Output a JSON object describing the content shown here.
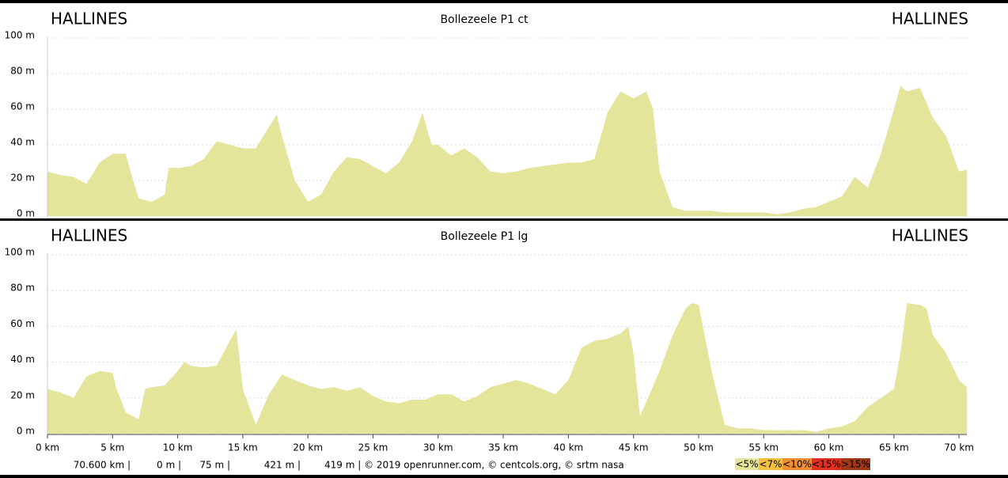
{
  "chart_data": [
    {
      "type": "area",
      "title": "Bollezeele P1 ct",
      "start_label": "HALLINES",
      "end_label": "HALLINES",
      "color": "#e4e49a",
      "x": [
        0,
        1,
        2,
        3,
        4,
        5,
        6,
        6.5,
        7,
        8,
        9,
        9.3,
        10,
        11,
        12,
        13,
        14,
        15,
        16,
        17,
        17.6,
        18,
        19,
        20,
        21,
        22,
        23,
        24,
        25,
        26,
        27,
        28,
        28.8,
        29.5,
        30,
        31,
        32,
        33,
        34,
        35,
        36,
        37,
        38,
        39,
        40,
        41,
        42,
        43,
        44,
        45,
        46,
        46.5,
        47,
        48,
        49,
        50,
        51,
        52,
        53,
        54,
        55,
        56,
        57,
        58,
        59,
        60,
        61,
        62,
        63,
        64,
        65,
        65.5,
        66,
        67,
        68,
        69,
        70,
        70.6
      ],
      "values": [
        25,
        23,
        22,
        18,
        30,
        35,
        35,
        22,
        10,
        8,
        12,
        27,
        27,
        28,
        32,
        42,
        40,
        38,
        38,
        50,
        57,
        45,
        20,
        8,
        12,
        25,
        33,
        32,
        28,
        24,
        30,
        42,
        58,
        40,
        40,
        34,
        38,
        33,
        25,
        24,
        25,
        27,
        28,
        29,
        30,
        30,
        32,
        58,
        70,
        66,
        70,
        60,
        25,
        5,
        3,
        3,
        3,
        2,
        2,
        2,
        2,
        1,
        2,
        4,
        5,
        8,
        11,
        22,
        16,
        35,
        60,
        73,
        70,
        72,
        55,
        45,
        25,
        26
      ],
      "xlim": [
        0,
        70.6
      ],
      "ylim": [
        0,
        100
      ],
      "yticks": [
        {
          "value": 0,
          "label": "0 m"
        },
        {
          "value": 20,
          "label": "20 m"
        },
        {
          "value": 40,
          "label": "40 m"
        },
        {
          "value": 60,
          "label": "60 m"
        },
        {
          "value": 80,
          "label": "80 m"
        },
        {
          "value": 100,
          "label": "100 m"
        }
      ],
      "grid": true
    },
    {
      "type": "area",
      "title": "Bollezeele P1 lg",
      "start_label": "HALLINES",
      "end_label": "HALLINES",
      "color": "#e4e49a",
      "x": [
        0,
        1,
        2,
        3,
        4,
        5,
        5.3,
        6,
        7,
        7.5,
        8,
        9,
        10,
        10.5,
        11,
        12,
        13,
        14,
        14.5,
        15,
        16,
        17,
        18,
        19,
        20,
        21,
        22,
        23,
        24,
        25,
        26,
        27,
        28,
        29,
        30,
        31,
        32,
        33,
        34,
        35,
        36,
        37,
        38,
        39,
        40,
        41,
        42,
        43,
        44,
        44.6,
        45,
        45.5,
        46,
        47,
        48,
        49,
        49.5,
        50,
        51,
        52,
        53,
        54,
        55,
        56,
        57,
        58,
        59,
        60,
        61,
        62,
        63,
        64,
        65,
        65.5,
        66,
        67,
        67.5,
        68,
        69,
        70,
        70.6
      ],
      "values": [
        25,
        23,
        20,
        32,
        35,
        34,
        25,
        12,
        8,
        25,
        26,
        27,
        35,
        40,
        38,
        37,
        38,
        52,
        58,
        25,
        5,
        22,
        33,
        30,
        27,
        25,
        26,
        24,
        26,
        21,
        18,
        17,
        19,
        19,
        22,
        22,
        18,
        21,
        26,
        28,
        30,
        28,
        25,
        22,
        30,
        48,
        52,
        53,
        56,
        60,
        45,
        10,
        18,
        35,
        55,
        70,
        73,
        72,
        35,
        5,
        3,
        3,
        2,
        2,
        2,
        2,
        1,
        3,
        4,
        7,
        15,
        20,
        25,
        45,
        73,
        72,
        70,
        55,
        45,
        30,
        26
      ],
      "xlim": [
        0,
        70.6
      ],
      "ylim": [
        0,
        100
      ],
      "yticks": [
        {
          "value": 0,
          "label": "0 m"
        },
        {
          "value": 20,
          "label": "20 m"
        },
        {
          "value": 40,
          "label": "40 m"
        },
        {
          "value": 60,
          "label": "60 m"
        },
        {
          "value": 80,
          "label": "80 m"
        },
        {
          "value": 100,
          "label": "100 m"
        }
      ],
      "xticks": [
        {
          "value": 0,
          "label": "0 km"
        },
        {
          "value": 5,
          "label": "5 km"
        },
        {
          "value": 10,
          "label": "10 km"
        },
        {
          "value": 15,
          "label": "15 km"
        },
        {
          "value": 20,
          "label": "20 km"
        },
        {
          "value": 25,
          "label": "25 km"
        },
        {
          "value": 30,
          "label": "30 km"
        },
        {
          "value": 35,
          "label": "35 km"
        },
        {
          "value": 40,
          "label": "40 km"
        },
        {
          "value": 45,
          "label": "45 km"
        },
        {
          "value": 50,
          "label": "50 km"
        },
        {
          "value": 55,
          "label": "55 km"
        },
        {
          "value": 60,
          "label": "60 km"
        },
        {
          "value": 65,
          "label": "65 km"
        },
        {
          "value": 70,
          "label": "70 km"
        }
      ],
      "grid": true
    }
  ],
  "footer": {
    "stats": [
      "70.600 km |",
      "0 m |",
      "75 m |",
      "421 m |",
      "419 m | © 2019 openrunner.com, © centcols.org, © srtm nasa"
    ],
    "legend": [
      {
        "label": "<5%",
        "color": "#e4e49a"
      },
      {
        "label": "<7%",
        "color": "#f5c040"
      },
      {
        "label": "<10%",
        "color": "#f09030"
      },
      {
        "label": "<15%",
        "color": "#e03020"
      },
      {
        "label": ">15%",
        "color": "#a03818"
      }
    ]
  }
}
